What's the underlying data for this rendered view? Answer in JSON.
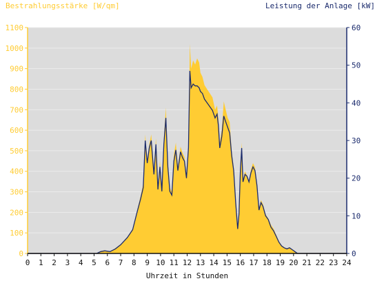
{
  "chart_data": {
    "type": "area",
    "left_axis_label": "Bestrahlungsstärke [W/qm]",
    "right_axis_label": "Leistung der Anlage [kW]",
    "xlabel": "Uhrzeit in Stunden",
    "xlim": [
      0,
      24
    ],
    "ylim_left": [
      0,
      1100
    ],
    "ylim_right": [
      0,
      60
    ],
    "x_ticks": [
      "0",
      "1",
      "2",
      "3",
      "4",
      "5",
      "6",
      "7",
      "8",
      "9",
      "10",
      "11",
      "12",
      "13",
      "14",
      "15",
      "16",
      "17",
      "18",
      "19",
      "20",
      "21",
      "22",
      "23",
      "24"
    ],
    "y_left_ticks": [
      "0",
      "100",
      "200",
      "300",
      "400",
      "500",
      "600",
      "700",
      "800",
      "900",
      "1000",
      "1100"
    ],
    "y_right_ticks": [
      "0",
      "10",
      "20",
      "30",
      "40",
      "50",
      "60"
    ],
    "grid": true,
    "colors": {
      "irradiance_fill": "#ffcc33",
      "power_line": "#1a2a6c",
      "plot_background": "#dcdcdc",
      "left_axis": "#ffcc33",
      "right_axis": "#1a2a6c"
    },
    "series": [
      {
        "name": "Bestrahlungsstärke [W/qm]",
        "axis": "left",
        "style": "area",
        "x": [
          0,
          5.2,
          5.5,
          5.8,
          6.2,
          6.6,
          7.0,
          7.5,
          7.9,
          8.2,
          8.5,
          8.7,
          8.85,
          9.0,
          9.15,
          9.3,
          9.5,
          9.65,
          9.8,
          9.95,
          10.1,
          10.25,
          10.4,
          10.55,
          10.7,
          10.85,
          11.0,
          11.15,
          11.3,
          11.5,
          11.65,
          11.8,
          11.95,
          12.1,
          12.2,
          12.3,
          12.45,
          12.6,
          12.75,
          12.9,
          13.0,
          13.15,
          13.3,
          13.5,
          13.7,
          13.9,
          14.1,
          14.25,
          14.35,
          14.45,
          14.6,
          14.75,
          14.9,
          15.05,
          15.2,
          15.35,
          15.5,
          15.65,
          15.8,
          15.9,
          16.0,
          16.1,
          16.2,
          16.35,
          16.5,
          16.65,
          16.8,
          16.95,
          17.1,
          17.25,
          17.4,
          17.55,
          17.7,
          17.9,
          18.1,
          18.3,
          18.5,
          18.7,
          18.9,
          19.1,
          19.3,
          19.5,
          19.7,
          19.9,
          20.1,
          20.3,
          20.5,
          24
        ],
        "values": [
          0,
          0,
          12,
          15,
          10,
          25,
          45,
          80,
          120,
          200,
          280,
          340,
          580,
          440,
          530,
          580,
          400,
          560,
          330,
          450,
          320,
          560,
          710,
          440,
          320,
          300,
          480,
          540,
          420,
          520,
          490,
          470,
          380,
          540,
          1020,
          900,
          940,
          920,
          950,
          930,
          880,
          860,
          820,
          800,
          780,
          760,
          700,
          720,
          660,
          540,
          600,
          740,
          700,
          660,
          640,
          500,
          420,
          260,
          140,
          200,
          420,
          540,
          360,
          400,
          380,
          350,
          410,
          440,
          420,
          340,
          220,
          260,
          240,
          190,
          170,
          140,
          120,
          90,
          60,
          40,
          30,
          25,
          30,
          20,
          10,
          0,
          0,
          0
        ]
      },
      {
        "name": "Leistung der Anlage [kW]",
        "axis": "right",
        "style": "line",
        "x": [
          0,
          5.2,
          5.5,
          5.8,
          6.2,
          6.6,
          7.0,
          7.5,
          7.9,
          8.2,
          8.5,
          8.7,
          8.85,
          9.0,
          9.15,
          9.3,
          9.5,
          9.65,
          9.8,
          9.95,
          10.1,
          10.25,
          10.4,
          10.55,
          10.7,
          10.85,
          11.0,
          11.15,
          11.3,
          11.5,
          11.65,
          11.8,
          11.95,
          12.1,
          12.2,
          12.3,
          12.45,
          12.6,
          12.75,
          12.9,
          13.0,
          13.15,
          13.3,
          13.5,
          13.7,
          13.9,
          14.1,
          14.25,
          14.35,
          14.45,
          14.6,
          14.75,
          14.9,
          15.05,
          15.2,
          15.35,
          15.5,
          15.65,
          15.8,
          15.9,
          16.0,
          16.1,
          16.2,
          16.35,
          16.5,
          16.65,
          16.8,
          16.95,
          17.1,
          17.25,
          17.4,
          17.55,
          17.7,
          17.9,
          18.1,
          18.3,
          18.5,
          18.7,
          18.9,
          19.1,
          19.3,
          19.5,
          19.7,
          19.9,
          20.1,
          20.3,
          20.5,
          24
        ],
        "values": [
          0,
          0,
          0.5,
          0.7,
          0.5,
          1.2,
          2.3,
          4.2,
          6.3,
          10.5,
          14.5,
          17.5,
          30,
          24,
          28,
          30,
          21,
          29,
          17,
          23,
          16.5,
          29,
          36,
          23,
          16.5,
          15.5,
          24.5,
          27.5,
          22,
          27,
          25.5,
          24.5,
          20,
          28,
          48.5,
          44,
          45,
          44.5,
          44.5,
          44,
          43,
          42.5,
          41,
          40,
          39,
          38,
          36,
          37,
          34,
          28,
          31,
          36.5,
          35,
          33.5,
          32,
          26,
          22,
          13.5,
          6.5,
          10.5,
          22,
          28,
          19,
          21,
          20.5,
          19,
          21.5,
          23,
          22,
          18,
          11.5,
          13.5,
          12.5,
          10,
          9,
          7,
          6,
          4.5,
          3,
          2,
          1.5,
          1.2,
          1.5,
          1,
          0.5,
          0,
          0,
          0
        ]
      }
    ]
  }
}
